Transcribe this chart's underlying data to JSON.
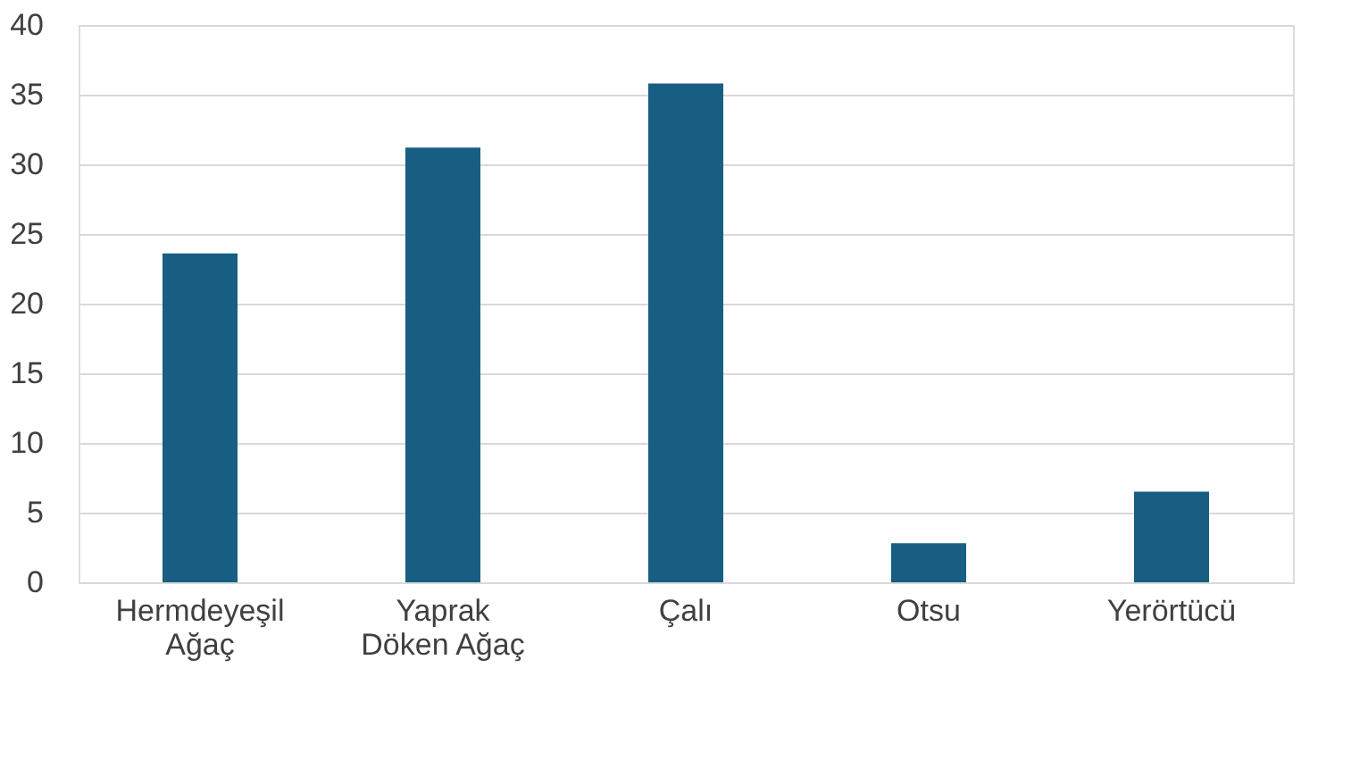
{
  "chart_data": {
    "type": "bar",
    "categories": [
      "Hermdeyeşil Ağaç",
      "Yaprak Döken Ağaç",
      "Çalı",
      "Otsu",
      "Yerörtücü"
    ],
    "values": [
      23.6,
      31.2,
      35.8,
      2.8,
      6.5
    ],
    "color": "#175e82",
    "ylim": [
      0,
      40
    ],
    "yticks": [
      0,
      5,
      10,
      15,
      20,
      25,
      30,
      35,
      40
    ],
    "grid": "y"
  }
}
